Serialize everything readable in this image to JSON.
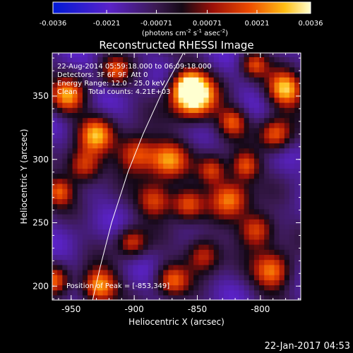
{
  "colorbar": {
    "ticks": [
      "-0.0036",
      "-0.0021",
      "-0.00071",
      "0.00071",
      "0.0021",
      "0.0036"
    ],
    "units_label": "(photons cm",
    "units_sup1": "-2",
    "units_mid": " s",
    "units_sup2": "-1",
    "units_end": " asec",
    "units_sup3": "-2",
    "units_close": ")"
  },
  "annotation": {
    "lines": [
      "22-Aug-2014 05:59:18.000 to 06:09:18.000",
      "Detectors: 3F 6F 9F, Att 0",
      "Energy Range: 12.0 - 25.0 keV",
      "Clean     Total counts: 4.21E+03"
    ],
    "peak": "Position of Peak = [-853,349]"
  },
  "footer": {
    "timestamp": "22-Jan-2017 04:53"
  },
  "chart_data": {
    "type": "heatmap",
    "title": "Reconstructed RHESSI Image",
    "xlabel": "Heliocentric X (arcsec)",
    "ylabel": "Heliocentric Y (arcsec)",
    "xlim": [
      -965,
      -768
    ],
    "ylim": [
      189,
      384
    ],
    "x_ticks": [
      -950,
      -900,
      -850,
      -800
    ],
    "y_ticks": [
      200,
      250,
      300,
      350
    ],
    "x_tick_labels": [
      "-950",
      "-900",
      "-850",
      "-800"
    ],
    "y_tick_labels": [
      "200",
      "250",
      "300",
      "350"
    ],
    "colorbar_range": [
      -0.0036,
      0.0036
    ],
    "peak": {
      "x": -853,
      "y": 349
    },
    "limb": [
      [
        -933,
        189
      ],
      [
        -927,
        215
      ],
      [
        -918,
        250
      ],
      [
        -905,
        290
      ],
      [
        -893,
        320
      ],
      [
        -877,
        355
      ],
      [
        -861,
        384
      ]
    ],
    "blobs": [
      {
        "x": -853,
        "y": 349,
        "r": 14,
        "v": 1.0
      },
      {
        "x": -857,
        "y": 358,
        "r": 10,
        "v": 0.55
      },
      {
        "x": -780,
        "y": 356,
        "r": 11,
        "v": 0.85
      },
      {
        "x": -928,
        "y": 200,
        "r": 11,
        "v": 0.8
      },
      {
        "x": -953,
        "y": 350,
        "r": 11,
        "v": 0.6
      },
      {
        "x": -930,
        "y": 320,
        "r": 11,
        "v": 0.62
      },
      {
        "x": -898,
        "y": 305,
        "r": 12,
        "v": 0.62
      },
      {
        "x": -873,
        "y": 300,
        "r": 12,
        "v": 0.6
      },
      {
        "x": -940,
        "y": 295,
        "r": 11,
        "v": 0.55
      },
      {
        "x": -960,
        "y": 275,
        "r": 9,
        "v": 0.45
      },
      {
        "x": -883,
        "y": 268,
        "r": 11,
        "v": 0.5
      },
      {
        "x": -858,
        "y": 265,
        "r": 10,
        "v": 0.52
      },
      {
        "x": -824,
        "y": 270,
        "r": 12,
        "v": 0.62
      },
      {
        "x": -803,
        "y": 245,
        "r": 11,
        "v": 0.6
      },
      {
        "x": -790,
        "y": 212,
        "r": 12,
        "v": 0.66
      },
      {
        "x": -788,
        "y": 320,
        "r": 10,
        "v": 0.55
      },
      {
        "x": -822,
        "y": 330,
        "r": 9,
        "v": 0.45
      },
      {
        "x": -845,
        "y": 225,
        "r": 11,
        "v": 0.48
      },
      {
        "x": -870,
        "y": 205,
        "r": 10,
        "v": 0.45
      },
      {
        "x": -963,
        "y": 205,
        "r": 9,
        "v": 0.42
      },
      {
        "x": -902,
        "y": 235,
        "r": 9,
        "v": 0.38
      },
      {
        "x": -915,
        "y": 370,
        "r": 9,
        "v": 0.35
      },
      {
        "x": -805,
        "y": 375,
        "r": 8,
        "v": 0.35
      },
      {
        "x": -838,
        "y": 292,
        "r": 9,
        "v": 0.45
      },
      {
        "x": -812,
        "y": 295,
        "r": 9,
        "v": 0.48
      }
    ]
  }
}
